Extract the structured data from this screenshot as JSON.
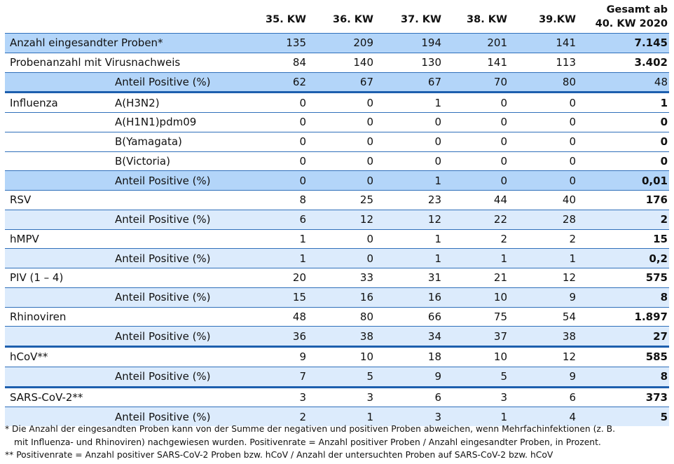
{
  "header": {
    "columns": [
      "35. KW",
      "36. KW",
      "37. KW",
      "38. KW",
      "39.KW"
    ],
    "total_line1": "Gesamt ab",
    "total_line2": "40. KW 2020"
  },
  "colors": {
    "row_dark": "#b3d5f9",
    "row_light": "#dcebfc",
    "border": "#2f6fba"
  },
  "rows": [
    {
      "label": "Anzahl eingesandter Proben*",
      "sub": "",
      "values": [
        "135",
        "209",
        "194",
        "201",
        "141"
      ],
      "total": "7.145",
      "style": "dark"
    },
    {
      "label": "Probenanzahl mit Virusnachweis",
      "sub": "",
      "values": [
        "84",
        "140",
        "130",
        "141",
        "113"
      ],
      "total": "3.402",
      "style": ""
    },
    {
      "label": "",
      "sub": "Anteil Positive (%)",
      "values": [
        "62",
        "67",
        "67",
        "70",
        "80"
      ],
      "total": "48",
      "style": "dark thick",
      "total_plain": true
    },
    {
      "label": "Influenza",
      "sub": "A(H3N2)",
      "values": [
        "0",
        "0",
        "1",
        "0",
        "0"
      ],
      "total": "1",
      "style": ""
    },
    {
      "label": "",
      "sub": "A(H1N1)pdm09",
      "values": [
        "0",
        "0",
        "0",
        "0",
        "0"
      ],
      "total": "0",
      "style": ""
    },
    {
      "label": "",
      "sub": "B(Yamagata)",
      "values": [
        "0",
        "0",
        "0",
        "0",
        "0"
      ],
      "total": "0",
      "style": ""
    },
    {
      "label": "",
      "sub": "B(Victoria)",
      "values": [
        "0",
        "0",
        "0",
        "0",
        "0"
      ],
      "total": "0",
      "style": ""
    },
    {
      "label": "",
      "sub": "Anteil Positive (%)",
      "values": [
        "0",
        "0",
        "1",
        "0",
        "0"
      ],
      "total": "0,01",
      "style": "dark"
    },
    {
      "label": "RSV",
      "sub": "",
      "values": [
        "8",
        "25",
        "23",
        "44",
        "40"
      ],
      "total": "176",
      "style": ""
    },
    {
      "label": "",
      "sub": "Anteil Positive (%)",
      "values": [
        "6",
        "12",
        "12",
        "22",
        "28"
      ],
      "total": "2",
      "style": "light"
    },
    {
      "label": "hMPV",
      "sub": "",
      "values": [
        "1",
        "0",
        "1",
        "2",
        "2"
      ],
      "total": "15",
      "style": ""
    },
    {
      "label": "",
      "sub": "Anteil Positive (%)",
      "values": [
        "1",
        "0",
        "1",
        "1",
        "1"
      ],
      "total": "0,2",
      "style": "light"
    },
    {
      "label": "PIV (1 – 4)",
      "sub": "",
      "values": [
        "20",
        "33",
        "31",
        "21",
        "12"
      ],
      "total": "575",
      "style": ""
    },
    {
      "label": "",
      "sub": "Anteil Positive (%)",
      "values": [
        "15",
        "16",
        "16",
        "10",
        "9"
      ],
      "total": "8",
      "style": "light"
    },
    {
      "label": "Rhinoviren",
      "sub": "",
      "values": [
        "48",
        "80",
        "66",
        "75",
        "54"
      ],
      "total": "1.897",
      "style": ""
    },
    {
      "label": "",
      "sub": "Anteil Positive (%)",
      "values": [
        "36",
        "38",
        "34",
        "37",
        "38"
      ],
      "total": "27",
      "style": "light thick"
    },
    {
      "label": "hCoV**",
      "sub": "",
      "values": [
        "9",
        "10",
        "18",
        "10",
        "12"
      ],
      "total": "585",
      "style": ""
    },
    {
      "label": "",
      "sub": "Anteil Positive (%)",
      "values": [
        "7",
        "5",
        "9",
        "5",
        "9"
      ],
      "total": "8",
      "style": "light thick"
    },
    {
      "label": "SARS-CoV-2**",
      "sub": "",
      "values": [
        "3",
        "3",
        "6",
        "3",
        "6"
      ],
      "total": "373",
      "style": ""
    },
    {
      "label": "",
      "sub": "Anteil Positive (%)",
      "values": [
        "2",
        "1",
        "3",
        "1",
        "4"
      ],
      "total": "5",
      "style": "light"
    }
  ],
  "footnotes": [
    "* Die Anzahl der eingesandten Proben kann von der Summe der negativen und positiven Proben abweichen, wenn Mehrfachinfektionen (z. B.",
    "mit Influenza- und Rhinoviren) nachgewiesen wurden. Positivenrate = Anzahl positiver Proben / Anzahl eingesandter Proben, in Prozent.",
    "** Positivenrate = Anzahl positiver SARS-CoV-2 Proben bzw. hCoV / Anzahl der untersuchten Proben auf SARS-CoV-2 bzw. hCoV"
  ]
}
